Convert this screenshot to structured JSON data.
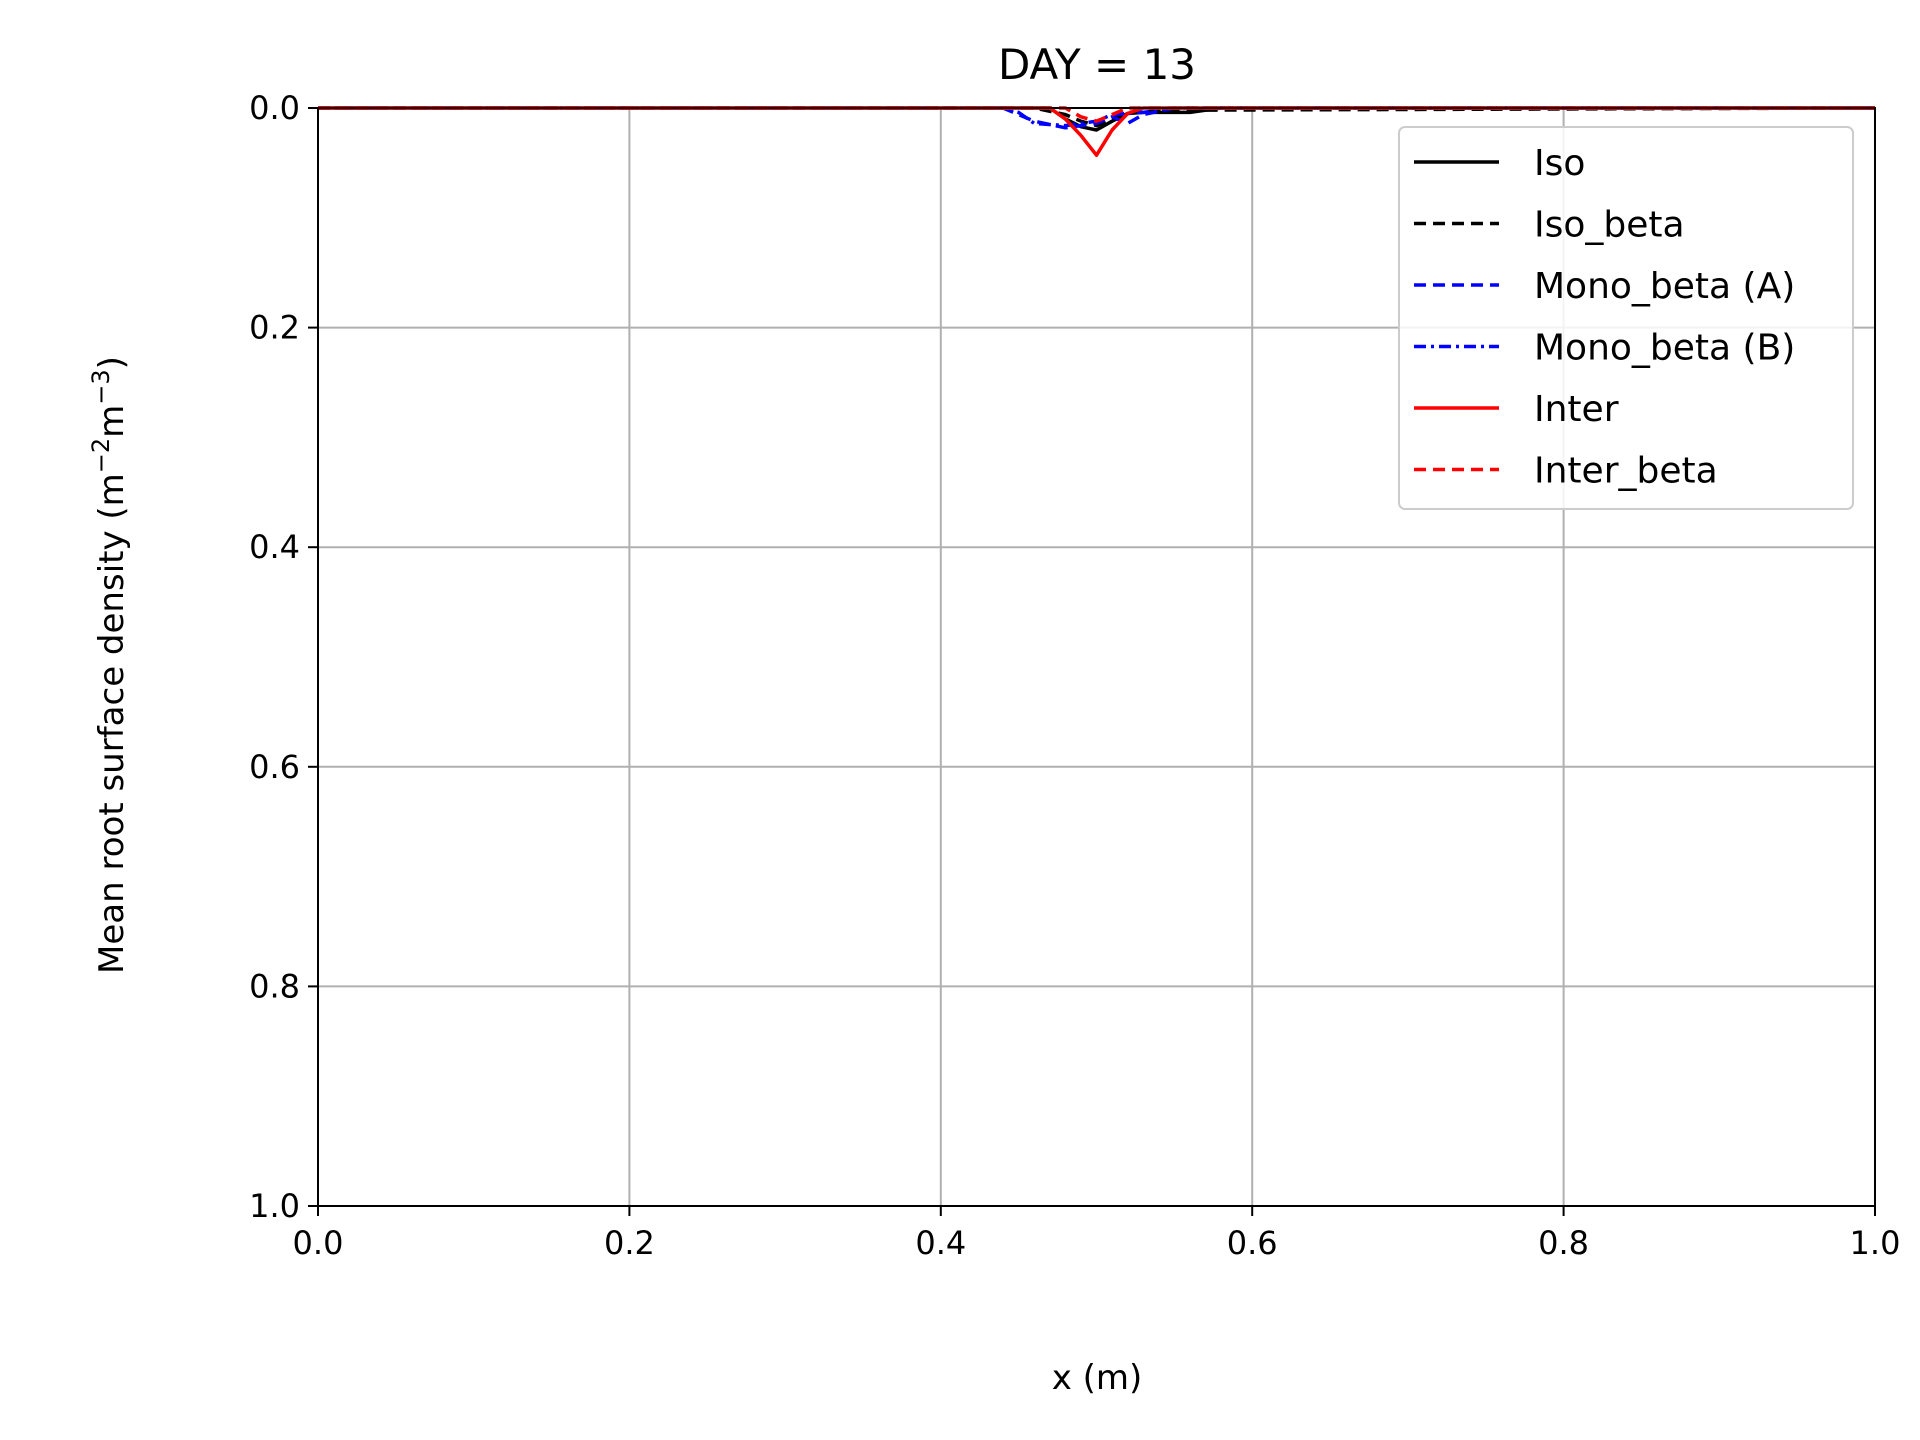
{
  "chart_data": {
    "type": "line",
    "title": "DAY = 13",
    "xlabel": "x (m)",
    "ylabel_parts": [
      "Mean root surface density (m",
      "−2",
      "m",
      "−3",
      ")"
    ],
    "xlim": [
      0.0,
      1.0
    ],
    "ylim": [
      0.0,
      1.0
    ],
    "y_inverted": true,
    "grid": true,
    "legend_position": "upper-right",
    "x_ticks": [
      "0.0",
      "0.2",
      "0.4",
      "0.6",
      "0.8",
      "1.0"
    ],
    "y_ticks": [
      "0.0",
      "0.2",
      "0.4",
      "0.6",
      "0.8",
      "1.0"
    ],
    "series": [
      {
        "name": "Iso",
        "color": "#000000",
        "style": "solid",
        "x": [
          0.0,
          0.44,
          0.46,
          0.47,
          0.48,
          0.49,
          0.5,
          0.51,
          0.52,
          0.53,
          0.56,
          0.58,
          1.0
        ],
        "y": [
          0.0,
          0.0,
          0.0,
          0.0,
          0.01,
          0.017,
          0.02,
          0.012,
          0.005,
          0.004,
          0.004,
          0.0,
          0.0
        ]
      },
      {
        "name": "Iso_beta",
        "color": "#000000",
        "style": "dashed",
        "x": [
          0.0,
          0.46,
          0.48,
          0.49,
          0.5,
          0.51,
          0.52,
          0.55,
          1.0
        ],
        "y": [
          0.0,
          0.0,
          0.006,
          0.012,
          0.016,
          0.01,
          0.004,
          0.002,
          0.0
        ]
      },
      {
        "name": "Mono_beta (A)",
        "color": "#0000ff",
        "style": "dashed",
        "x": [
          0.0,
          0.44,
          0.46,
          0.48,
          0.5,
          0.51,
          0.52,
          0.53,
          0.55,
          1.0
        ],
        "y": [
          0.0,
          0.0,
          0.012,
          0.018,
          0.014,
          0.008,
          0.014,
          0.006,
          0.0,
          0.0
        ]
      },
      {
        "name": "Mono_beta (B)",
        "color": "#0000ff",
        "style": "dashdot",
        "x": [
          0.0,
          0.44,
          0.45,
          0.46,
          0.48,
          0.5,
          0.51,
          0.53,
          0.55,
          1.0
        ],
        "y": [
          0.0,
          0.0,
          0.004,
          0.014,
          0.016,
          0.012,
          0.006,
          0.004,
          0.0,
          0.0
        ]
      },
      {
        "name": "Inter",
        "color": "#ff0000",
        "style": "solid",
        "x": [
          0.0,
          0.47,
          0.48,
          0.49,
          0.5,
          0.51,
          0.52,
          0.53,
          1.0
        ],
        "y": [
          0.0,
          0.0,
          0.01,
          0.025,
          0.043,
          0.02,
          0.005,
          0.0,
          0.0
        ]
      },
      {
        "name": "Inter_beta",
        "color": "#ff0000",
        "style": "dashed",
        "x": [
          0.0,
          0.48,
          0.49,
          0.5,
          0.51,
          0.52,
          1.0
        ],
        "y": [
          0.0,
          0.0,
          0.008,
          0.012,
          0.006,
          0.0,
          0.0
        ]
      }
    ]
  }
}
